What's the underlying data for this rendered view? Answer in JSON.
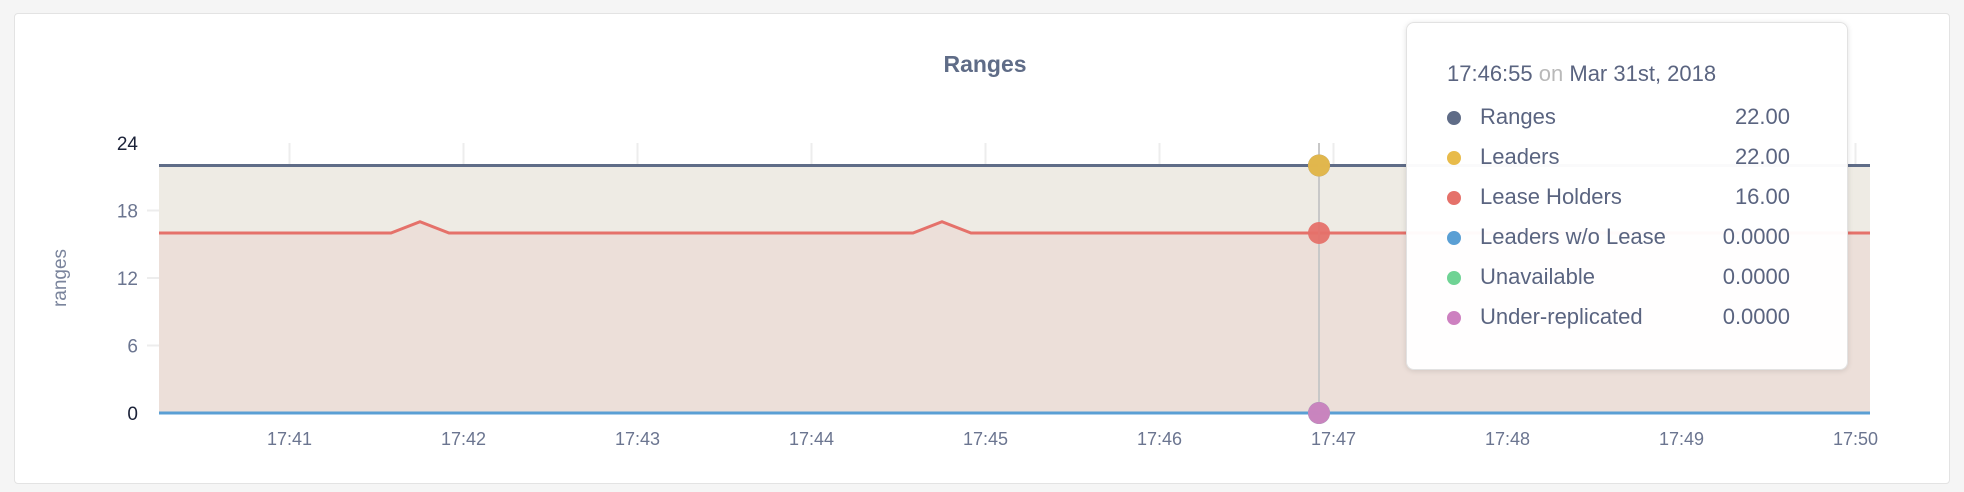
{
  "chart_data": {
    "type": "area",
    "title": "Ranges",
    "ylabel": "ranges",
    "xlabel": "",
    "ylim": [
      0,
      24
    ],
    "yticks": [
      "0",
      "6",
      "12",
      "18",
      "24"
    ],
    "xlim": [
      "17:40:15",
      "17:50:05"
    ],
    "xticks": [
      "17:41",
      "17:42",
      "17:43",
      "17:44",
      "17:45",
      "17:46",
      "17:47",
      "17:48",
      "17:49",
      "17:50"
    ],
    "grid": true,
    "series": [
      {
        "name": "Ranges",
        "color": "#5f6c87",
        "fill": false,
        "points": [
          [
            "17:40:15",
            22
          ],
          [
            "17:50:05",
            22
          ]
        ]
      },
      {
        "name": "Leaders",
        "color": "#e8bb4a",
        "fill": true,
        "points": [
          [
            "17:40:15",
            22
          ],
          [
            "17:50:05",
            22
          ]
        ]
      },
      {
        "name": "Lease Holders",
        "color": "#e5716a",
        "fill": true,
        "points": [
          [
            "17:40:15",
            16
          ],
          [
            "17:41:35",
            16
          ],
          [
            "17:41:45",
            17
          ],
          [
            "17:41:55",
            16
          ],
          [
            "17:44:35",
            16
          ],
          [
            "17:44:45",
            17
          ],
          [
            "17:44:55",
            16
          ],
          [
            "17:50:05",
            16
          ]
        ]
      },
      {
        "name": "Leaders w/o Lease",
        "color": "#5a9fd4",
        "fill": false,
        "points": [
          [
            "17:40:15",
            0
          ],
          [
            "17:50:05",
            0
          ]
        ]
      },
      {
        "name": "Unavailable",
        "color": "#6fd394",
        "fill": false,
        "points": [
          [
            "17:40:15",
            0
          ],
          [
            "17:50:05",
            0
          ]
        ]
      },
      {
        "name": "Under-replicated",
        "color": "#cd80c0",
        "fill": false,
        "points": [
          [
            "17:40:15",
            0
          ],
          [
            "17:50:05",
            0
          ]
        ]
      }
    ],
    "hover": {
      "time": "17:46:55"
    }
  },
  "tooltip": {
    "time": "17:46:55",
    "on": "on",
    "date": "Mar 31st, 2018",
    "rows": [
      {
        "label": "Ranges",
        "value": "22.00",
        "color": "#5f6c87"
      },
      {
        "label": "Leaders",
        "value": "22.00",
        "color": "#e8bb4a"
      },
      {
        "label": "Lease Holders",
        "value": "16.00",
        "color": "#e5716a"
      },
      {
        "label": "Leaders w/o Lease",
        "value": "0.0000",
        "color": "#5a9fd4"
      },
      {
        "label": "Unavailable",
        "value": "0.0000",
        "color": "#6fd394"
      },
      {
        "label": "Under-replicated",
        "value": "0.0000",
        "color": "#cd80c0"
      }
    ]
  }
}
